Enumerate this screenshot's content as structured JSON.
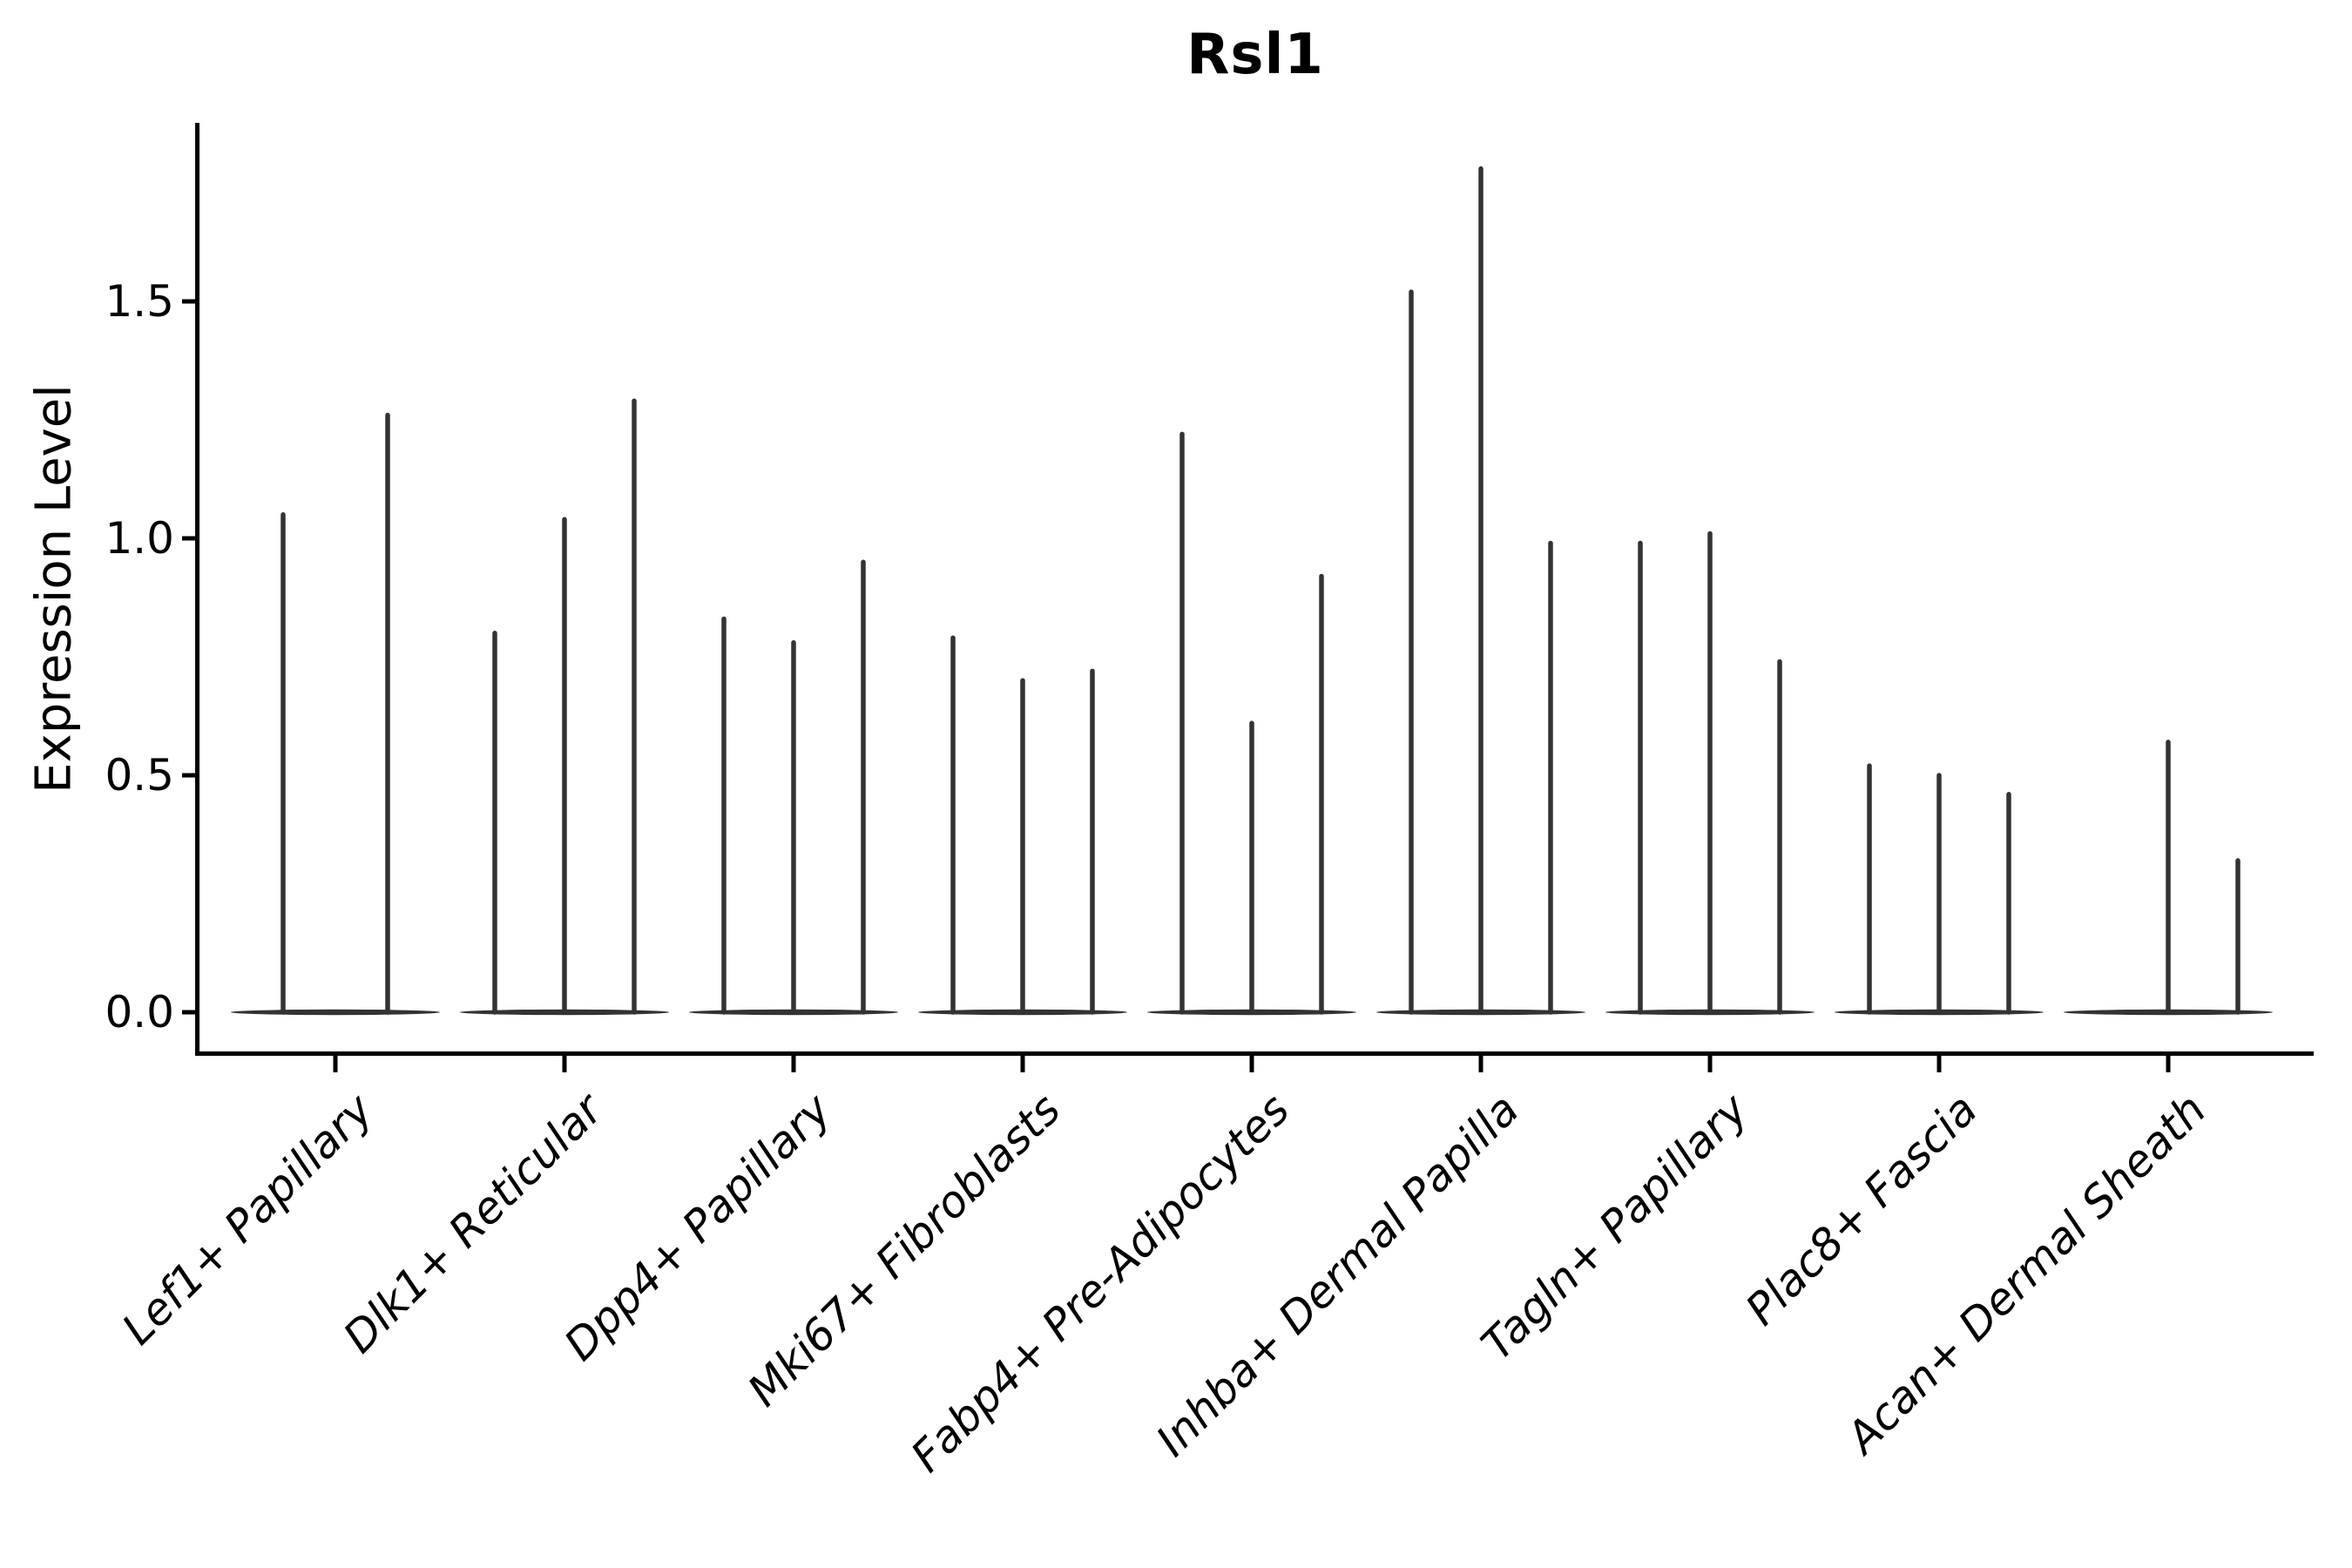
{
  "figure": {
    "title": "Rsl1",
    "y_axis": {
      "label": "Expression Level",
      "tick_labels": [
        "0.0",
        "0.5",
        "1.0",
        "1.5"
      ],
      "tick_values": [
        0.0,
        0.5,
        1.0,
        1.5
      ]
    },
    "x_axis": {
      "categories": [
        "Lef1+ Papillary",
        "Dlk1+ Reticular",
        "Dpp4+ Papillary",
        "Mki67+ Fibroblasts",
        "Fabp4+ Pre-Adipocytes",
        "Inhba+ Dermal Papilla",
        "Tagln+ Papillary",
        "Plac8+ Fascia",
        "Acan+ Dermal Sheath"
      ],
      "tick_rotation_deg": 45
    }
  },
  "chart_data": {
    "type": "violin",
    "title": "Rsl1",
    "xlabel": "",
    "ylabel": "Expression Level",
    "ylim": [
      -0.09,
      1.88
    ],
    "y_ticks": [
      0.0,
      0.5,
      1.0,
      1.5
    ],
    "grid": false,
    "legend": false,
    "violin_color": "#333333",
    "background_color": "#ffffff",
    "categories": [
      "Lef1+ Papillary",
      "Dlk1+ Reticular",
      "Dpp4+ Papillary",
      "Mki67+ Fibroblasts",
      "Fabp4+ Pre-Adipocytes",
      "Inhba+ Dermal Papilla",
      "Tagln+ Papillary",
      "Plac8+ Fascia",
      "Acan+ Dermal Sheath"
    ],
    "groups": [
      {
        "category": "Lef1+ Papillary",
        "violins": [
          {
            "dodge": -60,
            "peak": 1.05
          },
          {
            "dodge": 60,
            "peak": 1.26
          }
        ]
      },
      {
        "category": "Dlk1+ Reticular",
        "violins": [
          {
            "dodge": -80,
            "peak": 0.8
          },
          {
            "dodge": 0,
            "peak": 1.04
          },
          {
            "dodge": 80,
            "peak": 1.29
          }
        ]
      },
      {
        "category": "Dpp4+ Papillary",
        "violins": [
          {
            "dodge": -80,
            "peak": 0.83
          },
          {
            "dodge": 0,
            "peak": 0.78
          },
          {
            "dodge": 80,
            "peak": 0.95
          }
        ]
      },
      {
        "category": "Mki67+ Fibroblasts",
        "violins": [
          {
            "dodge": -80,
            "peak": 0.79
          },
          {
            "dodge": 0,
            "peak": 0.7
          },
          {
            "dodge": 80,
            "peak": 0.72
          }
        ]
      },
      {
        "category": "Fabp4+ Pre-Adipocytes",
        "violins": [
          {
            "dodge": -80,
            "peak": 1.22
          },
          {
            "dodge": 0,
            "peak": 0.61
          },
          {
            "dodge": 80,
            "peak": 0.92
          }
        ]
      },
      {
        "category": "Inhba+ Dermal Papilla",
        "violins": [
          {
            "dodge": -80,
            "peak": 1.52
          },
          {
            "dodge": 0,
            "peak": 1.78
          },
          {
            "dodge": 80,
            "peak": 0.99
          }
        ]
      },
      {
        "category": "Tagln+ Papillary",
        "violins": [
          {
            "dodge": -80,
            "peak": 0.99
          },
          {
            "dodge": 0,
            "peak": 1.01
          },
          {
            "dodge": 80,
            "peak": 0.74
          }
        ]
      },
      {
        "category": "Plac8+ Fascia",
        "violins": [
          {
            "dodge": -80,
            "peak": 0.52
          },
          {
            "dodge": 0,
            "peak": 0.5
          },
          {
            "dodge": 80,
            "peak": 0.46
          }
        ]
      },
      {
        "category": "Acan+ Dermal Sheath",
        "violins": [
          {
            "dodge": 0,
            "peak": 0.57
          },
          {
            "dodge": 80,
            "peak": 0.32
          }
        ]
      }
    ]
  }
}
